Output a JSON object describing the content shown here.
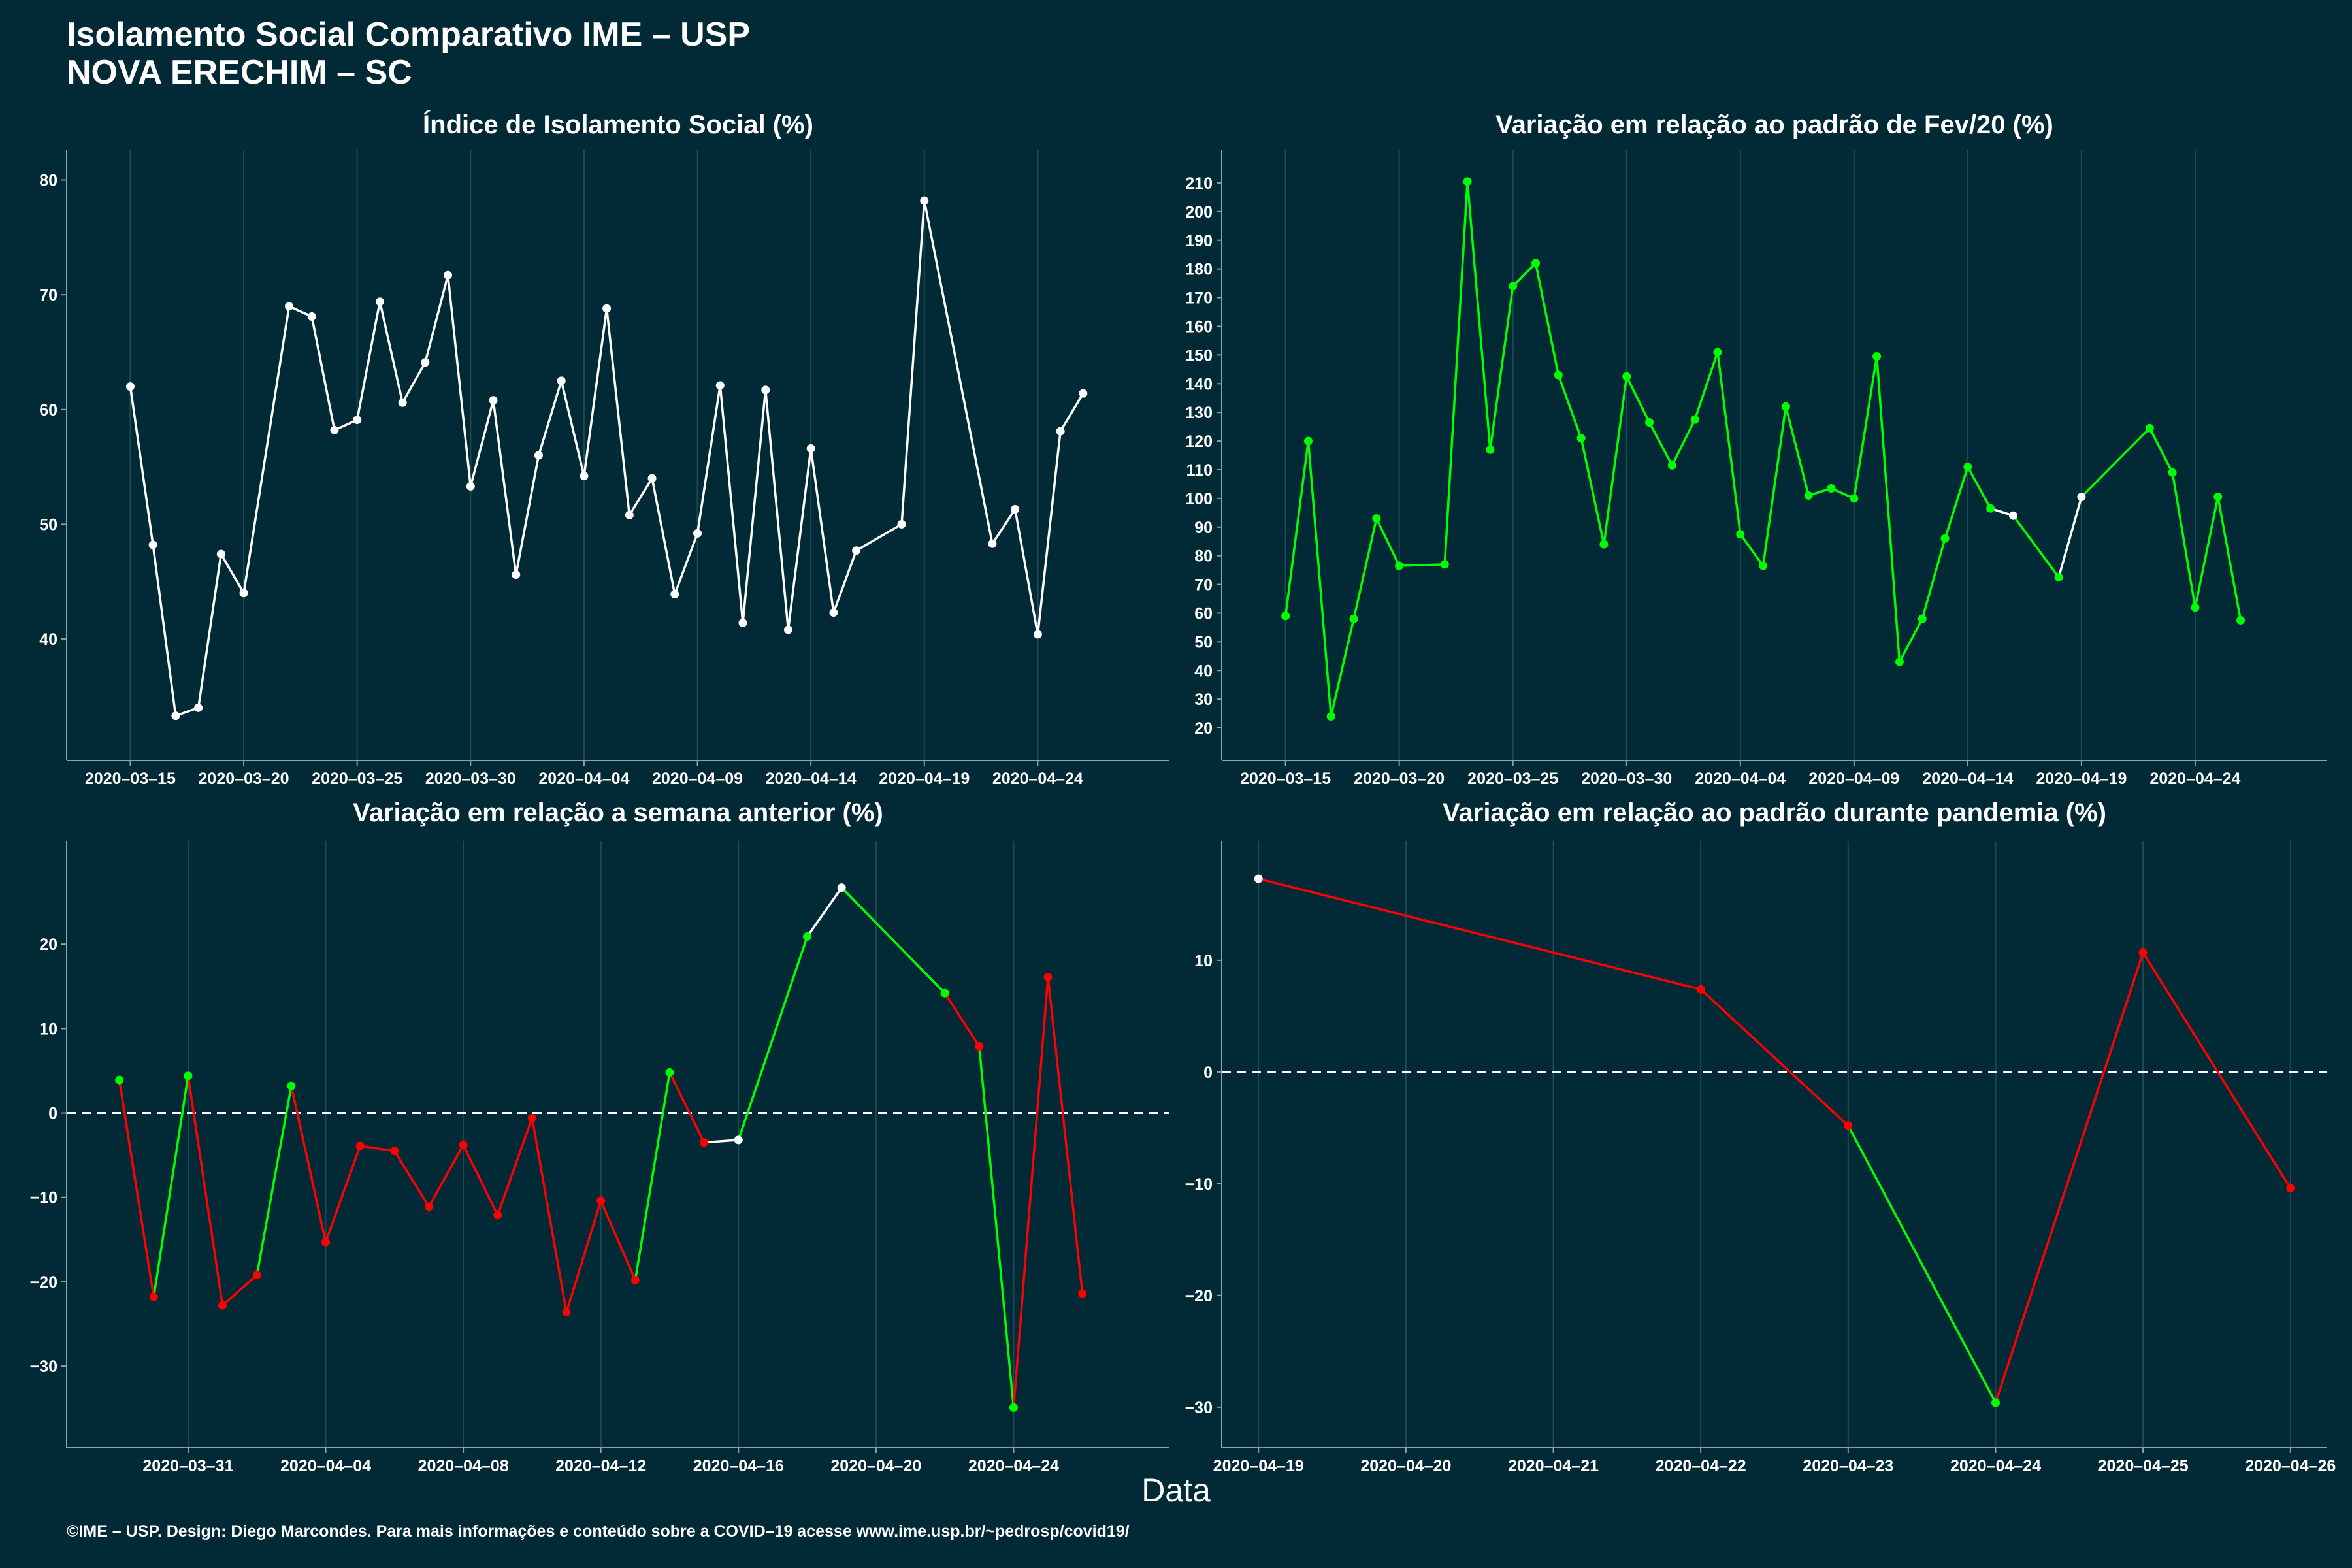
{
  "header": {
    "title_line1": "Isolamento Social Comparativo IME – USP",
    "title_line2": "NOVA ERECHIM – SC"
  },
  "x_axis_title": "Data",
  "footer": "©IME – USP. Design: Diego Marcondes. Para mais informações e conteúdo sobre a COVID–19 acesse www.ime.usp.br/~pedrosp/covid19/",
  "colors": {
    "background": "#022a36",
    "grid": "#1f4a52",
    "axis": "#8fa2a6",
    "white_line": "#ffffff",
    "increase": "#00ff00",
    "decrease": "#ff0000"
  },
  "chart_data": [
    {
      "id": "isolation-index",
      "type": "line",
      "title": "Índice de Isolamento Social (%)",
      "xlim": [
        "2020-03-13",
        "2020-04-29"
      ],
      "ylim": [
        31,
        81
      ],
      "yticks": [
        40,
        50,
        60,
        70,
        80
      ],
      "xticks": [
        "2020-03-15",
        "2020-03-20",
        "2020-03-25",
        "2020-03-30",
        "2020-04-04",
        "2020-04-09",
        "2020-04-14",
        "2020-04-19",
        "2020-04-24"
      ],
      "colored": false,
      "points": [
        [
          "2020-03-15",
          62.0
        ],
        [
          "2020-03-16",
          48.2
        ],
        [
          "2020-03-17",
          33.3
        ],
        [
          "2020-03-18",
          34.0
        ],
        [
          "2020-03-19",
          47.4
        ],
        [
          "2020-03-20",
          44.0
        ],
        [
          "2020-03-22",
          69.0
        ],
        [
          "2020-03-23",
          68.1
        ],
        [
          "2020-03-24",
          58.2
        ],
        [
          "2020-03-25",
          59.1
        ],
        [
          "2020-03-26",
          69.4
        ],
        [
          "2020-03-27",
          60.6
        ],
        [
          "2020-03-28",
          64.1
        ],
        [
          "2020-03-29",
          71.7
        ],
        [
          "2020-03-30",
          53.3
        ],
        [
          "2020-03-31",
          60.8
        ],
        [
          "2020-04-01",
          45.6
        ],
        [
          "2020-04-02",
          56.0
        ],
        [
          "2020-04-03",
          62.5
        ],
        [
          "2020-04-04",
          54.2
        ],
        [
          "2020-04-05",
          68.8
        ],
        [
          "2020-04-06",
          50.8
        ],
        [
          "2020-04-07",
          54.0
        ],
        [
          "2020-04-08",
          43.9
        ],
        [
          "2020-04-09",
          49.2
        ],
        [
          "2020-04-10",
          62.1
        ],
        [
          "2020-04-11",
          41.4
        ],
        [
          "2020-04-12",
          61.7
        ],
        [
          "2020-04-13",
          40.8
        ],
        [
          "2020-04-14",
          56.6
        ],
        [
          "2020-04-15",
          42.3
        ],
        [
          "2020-04-16",
          47.7
        ],
        [
          "2020-04-18",
          50.0
        ],
        [
          "2020-04-19",
          78.2
        ],
        [
          "2020-04-22",
          48.3
        ],
        [
          "2020-04-23",
          51.3
        ],
        [
          "2020-04-24",
          40.4
        ],
        [
          "2020-04-25",
          58.1
        ],
        [
          "2020-04-26",
          61.4
        ]
      ]
    },
    {
      "id": "variation-feb",
      "type": "line",
      "title": "Variação em relação ao padrão de Fev/20 (%)",
      "xlim": [
        "2020-03-13",
        "2020-04-29"
      ],
      "ylim": [
        15,
        215
      ],
      "yticks": [
        20,
        30,
        40,
        50,
        60,
        70,
        80,
        90,
        100,
        110,
        120,
        130,
        140,
        150,
        160,
        170,
        180,
        190,
        200,
        210
      ],
      "xticks": [
        "2020-03-15",
        "2020-03-20",
        "2020-03-25",
        "2020-03-30",
        "2020-04-04",
        "2020-04-09",
        "2020-04-14",
        "2020-04-19",
        "2020-04-24"
      ],
      "colored": true,
      "points": [
        [
          "2020-03-15",
          59,
          "g"
        ],
        [
          "2020-03-16",
          120,
          "g"
        ],
        [
          "2020-03-17",
          24,
          "g"
        ],
        [
          "2020-03-18",
          58,
          "g"
        ],
        [
          "2020-03-19",
          93,
          "g"
        ],
        [
          "2020-03-20",
          76.5,
          "g"
        ],
        [
          "2020-03-22",
          77,
          "g"
        ],
        [
          "2020-03-23",
          210.5,
          "g"
        ],
        [
          "2020-03-24",
          117,
          "g"
        ],
        [
          "2020-03-25",
          174,
          "g"
        ],
        [
          "2020-03-26",
          182,
          "g"
        ],
        [
          "2020-03-27",
          143,
          "g"
        ],
        [
          "2020-03-28",
          121,
          "g"
        ],
        [
          "2020-03-29",
          84,
          "g"
        ],
        [
          "2020-03-30",
          142.5,
          "g"
        ],
        [
          "2020-03-31",
          126.5,
          "g"
        ],
        [
          "2020-04-01",
          111.5,
          "g"
        ],
        [
          "2020-04-02",
          127.5,
          "g"
        ],
        [
          "2020-04-03",
          151,
          "g"
        ],
        [
          "2020-04-04",
          87.5,
          "g"
        ],
        [
          "2020-04-05",
          76.5,
          "g"
        ],
        [
          "2020-04-06",
          132,
          "g"
        ],
        [
          "2020-04-07",
          101,
          "g"
        ],
        [
          "2020-04-08",
          103.5,
          "g"
        ],
        [
          "2020-04-09",
          100,
          "g"
        ],
        [
          "2020-04-10",
          149.5,
          "g"
        ],
        [
          "2020-04-11",
          43,
          "g"
        ],
        [
          "2020-04-12",
          58,
          "g"
        ],
        [
          "2020-04-13",
          86,
          "g"
        ],
        [
          "2020-04-14",
          111,
          "g"
        ],
        [
          "2020-04-15",
          96.5,
          "g"
        ],
        [
          "2020-04-16",
          94,
          "w"
        ],
        [
          "2020-04-18",
          72.5,
          "g"
        ],
        [
          "2020-04-19",
          100.5,
          "w"
        ],
        [
          "2020-04-22",
          124.5,
          "g"
        ],
        [
          "2020-04-23",
          109,
          "g"
        ],
        [
          "2020-04-24",
          62,
          "g"
        ],
        [
          "2020-04-25",
          100.5,
          "g"
        ],
        [
          "2020-04-26",
          57.5,
          "g"
        ]
      ]
    },
    {
      "id": "variation-week",
      "type": "line",
      "title": "Variação em relação a semana anterior (%)",
      "xlim": [
        "2020-03-28",
        "2020-04-28"
      ],
      "ylim": [
        -37.5,
        30
      ],
      "yticks": [
        -30,
        -20,
        -10,
        0,
        10,
        20
      ],
      "xticks": [
        "2020-03-31",
        "2020-04-04",
        "2020-04-08",
        "2020-04-12",
        "2020-04-16",
        "2020-04-20",
        "2020-04-24"
      ],
      "zero_line": true,
      "colored": true,
      "points": [
        [
          "2020-03-29",
          3.9,
          "g"
        ],
        [
          "2020-03-30",
          -21.8,
          "r"
        ],
        [
          "2020-03-31",
          4.4,
          "g"
        ],
        [
          "2020-04-01",
          -22.8,
          "r"
        ],
        [
          "2020-04-02",
          -19.2,
          "r"
        ],
        [
          "2020-04-03",
          3.2,
          "g"
        ],
        [
          "2020-04-04",
          -15.3,
          "r"
        ],
        [
          "2020-04-05",
          -3.9,
          "r"
        ],
        [
          "2020-04-06",
          -4.5,
          "r"
        ],
        [
          "2020-04-07",
          -11.1,
          "r"
        ],
        [
          "2020-04-08",
          -3.8,
          "r"
        ],
        [
          "2020-04-09",
          -12.1,
          "r"
        ],
        [
          "2020-04-10",
          -0.6,
          "r"
        ],
        [
          "2020-04-11",
          -23.6,
          "r"
        ],
        [
          "2020-04-12",
          -10.4,
          "r"
        ],
        [
          "2020-04-13",
          -19.8,
          "r"
        ],
        [
          "2020-04-14",
          4.8,
          "g"
        ],
        [
          "2020-04-15",
          -3.5,
          "r"
        ],
        [
          "2020-04-16",
          -3.2,
          "w"
        ],
        [
          "2020-04-18",
          20.9,
          "g"
        ],
        [
          "2020-04-19",
          26.7,
          "w"
        ],
        [
          "2020-04-22",
          14.2,
          "g"
        ],
        [
          "2020-04-23",
          7.9,
          "r"
        ],
        [
          "2020-04-24",
          -34.9,
          "g"
        ],
        [
          "2020-04-25",
          16.1,
          "r"
        ],
        [
          "2020-04-26",
          -21.4,
          "r"
        ]
      ]
    },
    {
      "id": "variation-pandemic",
      "type": "line",
      "title": "Variação em relação ao padrão durante pandemia (%)",
      "xlim": [
        "2020-04-18T21:00",
        "2020-04-26T03:00"
      ],
      "ylim": [
        -32,
        19
      ],
      "yticks": [
        -30,
        -20,
        -10,
        0,
        10
      ],
      "xticks": [
        "2020-04-19",
        "2020-04-20",
        "2020-04-21",
        "2020-04-22",
        "2020-04-23",
        "2020-04-24",
        "2020-04-25",
        "2020-04-26"
      ],
      "zero_line": true,
      "colored": true,
      "points": [
        [
          "2020-04-19",
          17.3,
          "w"
        ],
        [
          "2020-04-22",
          7.4,
          "r"
        ],
        [
          "2020-04-23",
          -4.8,
          "r"
        ],
        [
          "2020-04-24",
          -29.6,
          "g"
        ],
        [
          "2020-04-25",
          10.7,
          "r"
        ],
        [
          "2020-04-26",
          -10.4,
          "r"
        ]
      ]
    }
  ]
}
